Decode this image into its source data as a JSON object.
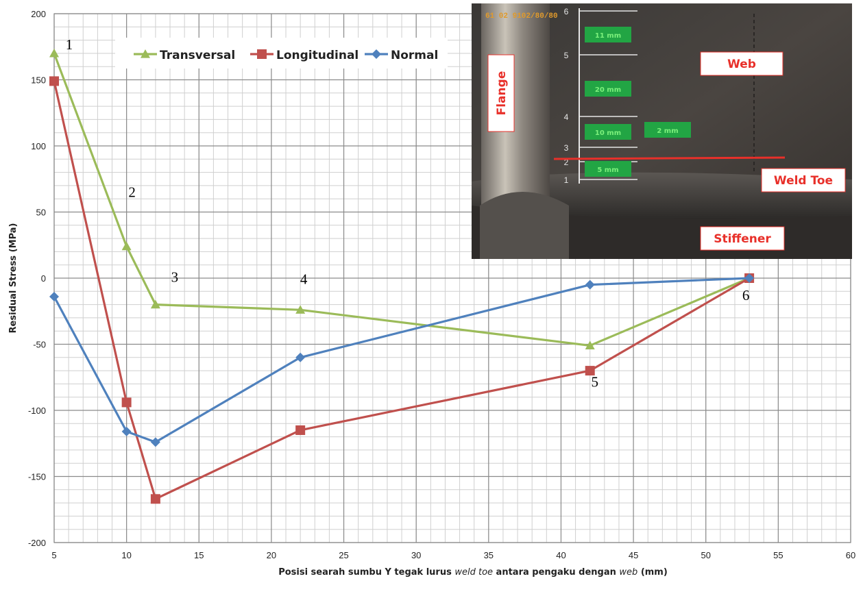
{
  "chart_data": {
    "type": "line",
    "title": "",
    "xlabel_parts": [
      {
        "text": "Posisi searah sumbu Y tegak lurus ",
        "italic": false
      },
      {
        "text": "weld toe",
        "italic": true
      },
      {
        "text": " antara pengaku dengan ",
        "italic": false
      },
      {
        "text": "web",
        "italic": true
      },
      {
        "text": " (mm)",
        "italic": false
      }
    ],
    "ylabel": "Residual Stress (MPa)",
    "xlim": [
      5,
      60
    ],
    "ylim": [
      -200,
      200
    ],
    "x_ticks": [
      5,
      10,
      15,
      20,
      25,
      30,
      35,
      40,
      45,
      50,
      55,
      60
    ],
    "y_ticks": [
      -200,
      -150,
      -100,
      -50,
      0,
      50,
      100,
      150,
      200
    ],
    "grid": true,
    "legend_position": "top",
    "x": [
      5,
      10,
      12,
      22,
      42,
      53
    ],
    "series": [
      {
        "name": "Transversal",
        "color": "#9bbb59",
        "marker": "triangle",
        "values": [
          170,
          24,
          -20,
          -24,
          -51,
          0
        ]
      },
      {
        "name": "Longitudinal",
        "color": "#c0504d",
        "marker": "square",
        "values": [
          149,
          -94,
          -167,
          -115,
          -70,
          0
        ]
      },
      {
        "name": "Normal",
        "color": "#4f81bd",
        "marker": "diamond",
        "values": [
          -14,
          -116,
          -124,
          -60,
          -5,
          0
        ]
      }
    ],
    "point_labels": [
      {
        "text": "1",
        "x": 5,
        "y": 170
      },
      {
        "text": "2",
        "x": 10,
        "y": 24
      },
      {
        "text": "3",
        "x": 12,
        "y": -20
      },
      {
        "text": "4",
        "x": 22,
        "y": -24
      },
      {
        "text": "5",
        "x": 42,
        "y": -51
      },
      {
        "text": "6",
        "x": 53,
        "y": 0
      }
    ]
  },
  "inset_photo": {
    "labels": {
      "web": "Web",
      "flange": "Flange",
      "weld_toe": "Weld Toe",
      "stiffener": "Stiffener"
    },
    "dimensions": [
      "11 mm",
      "20 mm",
      "10 mm",
      "2 mm",
      "5 mm"
    ],
    "ruler_numbers": [
      "6",
      "5",
      "4",
      "3",
      "2",
      "1"
    ],
    "timestamp": "61 02 9102/80/80"
  }
}
